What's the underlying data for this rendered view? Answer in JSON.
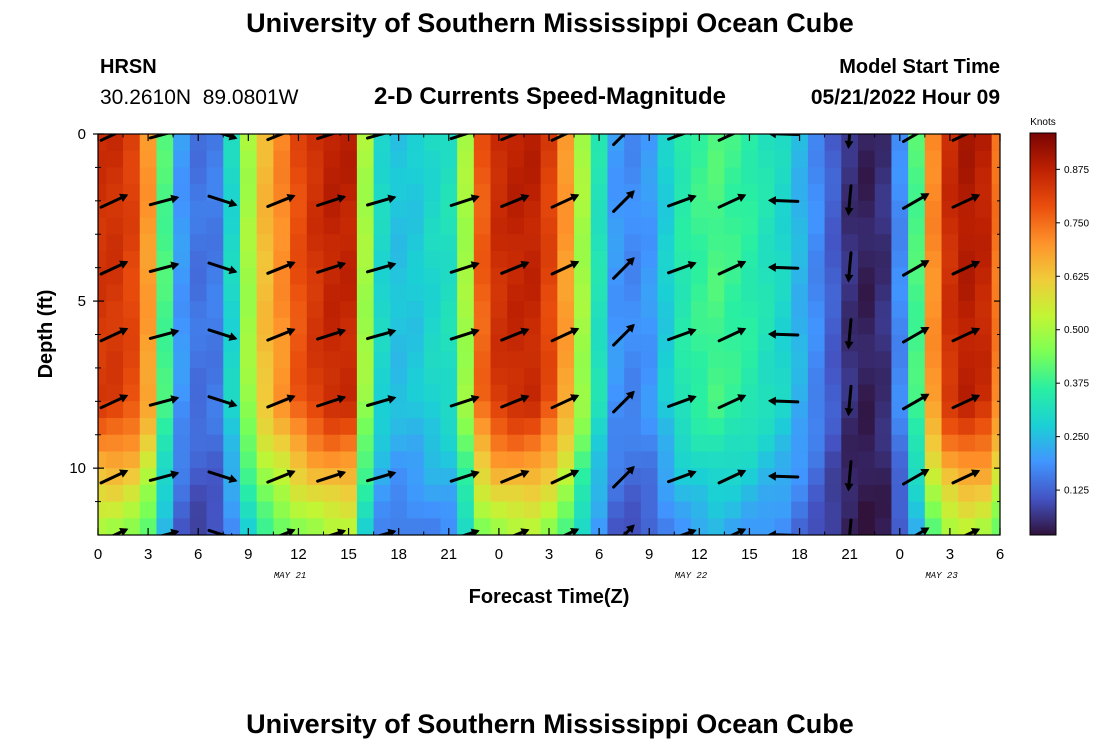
{
  "header": {
    "title": "University of Southern Mississippi Ocean Cube",
    "station": "HRSN",
    "coords": "30.2610N  89.0801W",
    "subtitle": "2-D Currents Speed-Magnitude",
    "model_start_label": "Model Start Time",
    "model_start_value": "05/21/2022 Hour 09"
  },
  "footer": {
    "title": "University of Southern Mississippi Ocean Cube"
  },
  "colors": {
    "colormap": [
      "#30123b",
      "#4454c4",
      "#4195ff",
      "#1bd0d5",
      "#29efa2",
      "#7cff55",
      "#c2f534",
      "#f0cb3a",
      "#fe922a",
      "#ea4e0d",
      "#be2102",
      "#7a0403"
    ]
  },
  "chart_data": {
    "type": "heatmap",
    "xlabel": "Forecast Time(Z)",
    "ylabel": "Depth (ft)",
    "colorbar_label": "Knots",
    "x_tick_labels": [
      "0",
      "3",
      "6",
      "9",
      "12",
      "15",
      "18",
      "21",
      "0",
      "3",
      "6",
      "9",
      "12",
      "15",
      "18",
      "21",
      "0",
      "3",
      "6"
    ],
    "date_labels": [
      {
        "text": "MAY 21",
        "hour": 11.5
      },
      {
        "text": "MAY 22",
        "hour": 35.5
      },
      {
        "text": "MAY 23",
        "hour": 50.5
      }
    ],
    "x_range_hours": [
      0,
      54
    ],
    "y_tick_labels": [
      "0",
      "5",
      "10"
    ],
    "y_tick_values": [
      0,
      5,
      10
    ],
    "depth_range_ft": [
      0,
      12
    ],
    "colorbar_ticks": [
      "0.125",
      "0.250",
      "0.375",
      "0.500",
      "0.625",
      "0.750",
      "0.875"
    ],
    "colorbar_tick_values": [
      0.125,
      0.25,
      0.375,
      0.5,
      0.625,
      0.75,
      0.875
    ],
    "colorbar_range": [
      0.02,
      0.96
    ],
    "speed_profile": {
      "hours": [
        0,
        1,
        2,
        3,
        4,
        5,
        6,
        7,
        8,
        9,
        10,
        11,
        12,
        13,
        14,
        15,
        16,
        17,
        18,
        19,
        20,
        21,
        22,
        23,
        24,
        25,
        26,
        27,
        28,
        29,
        30,
        31,
        32,
        33,
        34,
        35,
        36,
        37,
        38,
        39,
        40,
        41,
        42,
        43,
        44,
        45,
        46,
        47,
        48,
        49,
        50,
        51,
        52,
        53,
        54
      ],
      "surface_knots": [
        0.85,
        0.85,
        0.82,
        0.7,
        0.4,
        0.2,
        0.15,
        0.16,
        0.3,
        0.5,
        0.65,
        0.72,
        0.8,
        0.85,
        0.88,
        0.88,
        0.5,
        0.3,
        0.26,
        0.27,
        0.3,
        0.32,
        0.5,
        0.78,
        0.86,
        0.88,
        0.88,
        0.82,
        0.7,
        0.5,
        0.33,
        0.2,
        0.18,
        0.2,
        0.28,
        0.35,
        0.38,
        0.4,
        0.38,
        0.36,
        0.33,
        0.3,
        0.24,
        0.18,
        0.12,
        0.06,
        0.04,
        0.06,
        0.18,
        0.4,
        0.72,
        0.86,
        0.9,
        0.88,
        0.75
      ]
    },
    "depth_attenuation": [
      {
        "depth_ft": 0,
        "factor": 1.0
      },
      {
        "depth_ft": 8,
        "factor": 0.97
      },
      {
        "depth_ft": 9,
        "factor": 0.88
      },
      {
        "depth_ft": 10.5,
        "factor": 0.72
      },
      {
        "depth_ft": 12,
        "factor": 0.56
      }
    ],
    "vectors": {
      "depths_ft": [
        0,
        2,
        4,
        6,
        8,
        10.25,
        12
      ],
      "columns": [
        {
          "hour": 1,
          "angle_deg": -25
        },
        {
          "hour": 4,
          "angle_deg": -15
        },
        {
          "hour": 7.5,
          "angle_deg": 18
        },
        {
          "hour": 11,
          "angle_deg": -22
        },
        {
          "hour": 14,
          "angle_deg": -18
        },
        {
          "hour": 17,
          "angle_deg": -16
        },
        {
          "hour": 22,
          "angle_deg": -18
        },
        {
          "hour": 25,
          "angle_deg": -22
        },
        {
          "hour": 28,
          "angle_deg": -25
        },
        {
          "hour": 31.5,
          "angle_deg": -45
        },
        {
          "hour": 35,
          "angle_deg": -20
        },
        {
          "hour": 38,
          "angle_deg": -25
        },
        {
          "hour": 41,
          "angle_deg": -178
        },
        {
          "hour": 45,
          "angle_deg": 95
        },
        {
          "hour": 49,
          "angle_deg": -30
        },
        {
          "hour": 52,
          "angle_deg": -25
        }
      ]
    }
  }
}
